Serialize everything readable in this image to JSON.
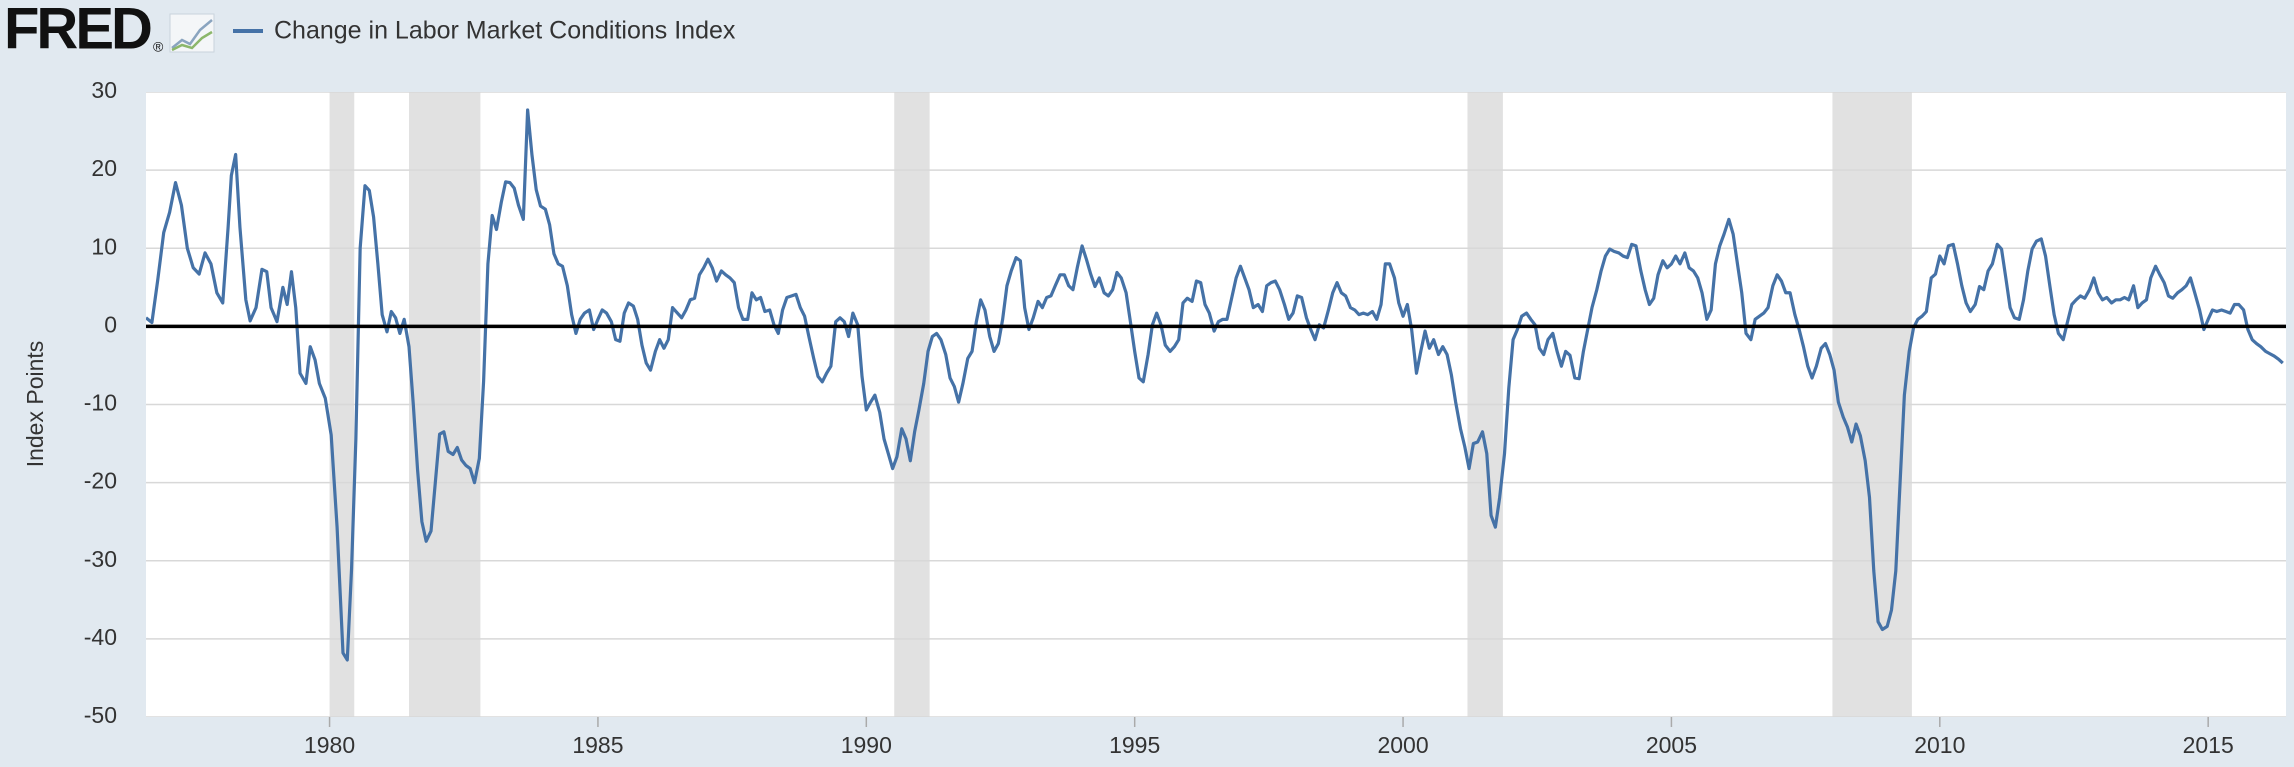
{
  "header": {
    "logo": "FRED",
    "logo_mark": "®"
  },
  "chart_data": {
    "type": "line",
    "y_label": "Index Points",
    "xlim": [
      1976.58,
      2016.45
    ],
    "ylim": [
      -50,
      30
    ],
    "xticks": [
      1980,
      1985,
      1990,
      1995,
      2000,
      2005,
      2010,
      2015
    ],
    "yticks": [
      -50,
      -40,
      -30,
      -20,
      -10,
      0,
      10,
      20,
      30
    ],
    "grid": true,
    "zero_line": true,
    "legend": "top-left",
    "recession_color": "#e1e1e1",
    "recessions": [
      [
        1980,
        1980.46
      ],
      [
        1981.48,
        1982.81
      ],
      [
        1990.52,
        1991.18
      ],
      [
        2001.2,
        2001.86
      ],
      [
        2008,
        2009.48
      ]
    ],
    "x": [
      1976.58,
      1976.69,
      1976.8,
      1976.91,
      1977.02,
      1977.13,
      1977.24,
      1977.35,
      1977.46,
      1977.57,
      1977.68,
      1977.79,
      1977.9,
      1978.01,
      1978.11,
      1978.17,
      1978.25,
      1978.33,
      1978.44,
      1978.52,
      1978.63,
      1978.74,
      1978.83,
      1978.91,
      1979.02,
      1979.13,
      1979.21,
      1979.29,
      1979.37,
      1979.45,
      1979.56,
      1979.64,
      1979.73,
      1979.81,
      1979.92,
      1980.03,
      1980.14,
      1980.25,
      1980.33,
      1980.41,
      1980.49,
      1980.57,
      1980.66,
      1980.74,
      1980.82,
      1980.9,
      1980.98,
      1981.07,
      1981.15,
      1981.23,
      1981.31,
      1981.39,
      1981.48,
      1981.56,
      1981.64,
      1981.72,
      1981.8,
      1981.89,
      1981.97,
      1982.05,
      1982.13,
      1982.21,
      1982.3,
      1982.38,
      1982.46,
      1982.54,
      1982.62,
      1982.7,
      1982.79,
      1982.87,
      1982.95,
      1983.03,
      1983.11,
      1983.2,
      1983.28,
      1983.36,
      1983.44,
      1983.52,
      1983.61,
      1983.69,
      1983.77,
      1983.85,
      1983.93,
      1984.02,
      1984.1,
      1984.18,
      1984.26,
      1984.34,
      1984.43,
      1984.51,
      1984.59,
      1984.67,
      1984.75,
      1984.84,
      1984.92,
      1985,
      1985.08,
      1985.16,
      1985.25,
      1985.33,
      1985.41,
      1985.49,
      1985.57,
      1985.66,
      1985.74,
      1985.82,
      1985.9,
      1985.98,
      1986.07,
      1986.15,
      1986.23,
      1986.31,
      1986.39,
      1986.48,
      1986.56,
      1986.64,
      1986.72,
      1986.8,
      1986.89,
      1986.97,
      1987.05,
      1987.13,
      1987.21,
      1987.3,
      1987.38,
      1987.46,
      1987.54,
      1987.62,
      1987.7,
      1987.79,
      1987.87,
      1987.95,
      1988.03,
      1988.11,
      1988.2,
      1988.28,
      1988.36,
      1988.44,
      1988.52,
      1988.61,
      1988.69,
      1988.77,
      1988.85,
      1988.93,
      1989.02,
      1989.1,
      1989.18,
      1989.26,
      1989.34,
      1989.43,
      1989.51,
      1989.59,
      1989.67,
      1989.75,
      1989.84,
      1989.92,
      1990,
      1990.08,
      1990.16,
      1990.25,
      1990.33,
      1990.41,
      1990.49,
      1990.57,
      1990.66,
      1990.74,
      1990.82,
      1990.9,
      1990.98,
      1991.07,
      1991.15,
      1991.23,
      1991.31,
      1991.39,
      1991.48,
      1991.56,
      1991.64,
      1991.72,
      1991.8,
      1991.89,
      1991.97,
      1992.05,
      1992.13,
      1992.21,
      1992.3,
      1992.38,
      1992.46,
      1992.54,
      1992.62,
      1992.7,
      1992.79,
      1992.87,
      1992.95,
      1993.03,
      1993.11,
      1993.2,
      1993.28,
      1993.36,
      1993.44,
      1993.52,
      1993.61,
      1993.69,
      1993.77,
      1993.85,
      1993.93,
      1994.02,
      1994.1,
      1994.18,
      1994.26,
      1994.34,
      1994.43,
      1994.51,
      1994.59,
      1994.67,
      1994.75,
      1994.84,
      1994.92,
      1995,
      1995.08,
      1995.16,
      1995.25,
      1995.33,
      1995.41,
      1995.49,
      1995.57,
      1995.66,
      1995.74,
      1995.82,
      1995.9,
      1995.98,
      1996.07,
      1996.15,
      1996.23,
      1996.31,
      1996.39,
      1996.48,
      1996.56,
      1996.64,
      1996.72,
      1996.8,
      1996.89,
      1996.97,
      1997.05,
      1997.13,
      1997.21,
      1997.3,
      1997.38,
      1997.46,
      1997.54,
      1997.62,
      1997.7,
      1997.79,
      1997.87,
      1997.95,
      1998.03,
      1998.11,
      1998.2,
      1998.28,
      1998.36,
      1998.44,
      1998.52,
      1998.61,
      1998.69,
      1998.77,
      1998.85,
      1998.93,
      1999.02,
      1999.1,
      1999.18,
      1999.26,
      1999.34,
      1999.43,
      1999.51,
      1999.59,
      1999.67,
      1999.75,
      1999.84,
      1999.92,
      2000,
      2000.08,
      2000.16,
      2000.25,
      2000.33,
      2000.41,
      2000.49,
      2000.57,
      2000.66,
      2000.74,
      2000.82,
      2000.9,
      2000.98,
      2001.07,
      2001.15,
      2001.23,
      2001.31,
      2001.39,
      2001.48,
      2001.56,
      2001.64,
      2001.72,
      2001.8,
      2001.89,
      2001.97,
      2002.05,
      2002.13,
      2002.21,
      2002.3,
      2002.38,
      2002.46,
      2002.54,
      2002.62,
      2002.7,
      2002.79,
      2002.87,
      2002.95,
      2003.03,
      2003.11,
      2003.2,
      2003.28,
      2003.36,
      2003.44,
      2003.52,
      2003.61,
      2003.69,
      2003.77,
      2003.85,
      2003.93,
      2004.02,
      2004.1,
      2004.18,
      2004.26,
      2004.34,
      2004.43,
      2004.51,
      2004.59,
      2004.67,
      2004.75,
      2004.84,
      2004.92,
      2005,
      2005.08,
      2005.16,
      2005.25,
      2005.33,
      2005.41,
      2005.49,
      2005.57,
      2005.66,
      2005.74,
      2005.82,
      2005.9,
      2005.98,
      2006.07,
      2006.15,
      2006.23,
      2006.31,
      2006.39,
      2006.48,
      2006.56,
      2006.64,
      2006.72,
      2006.8,
      2006.89,
      2006.97,
      2007.05,
      2007.13,
      2007.21,
      2007.3,
      2007.38,
      2007.46,
      2007.54,
      2007.62,
      2007.7,
      2007.79,
      2007.87,
      2007.95,
      2008.03,
      2008.11,
      2008.2,
      2008.28,
      2008.36,
      2008.44,
      2008.52,
      2008.61,
      2008.69,
      2008.77,
      2008.85,
      2008.93,
      2009.02,
      2009.1,
      2009.18,
      2009.26,
      2009.34,
      2009.43,
      2009.51,
      2009.59,
      2009.67,
      2009.75,
      2009.84,
      2009.92,
      2010,
      2010.08,
      2010.16,
      2010.25,
      2010.33,
      2010.41,
      2010.49,
      2010.57,
      2010.66,
      2010.74,
      2010.82,
      2010.9,
      2010.98,
      2011.07,
      2011.15,
      2011.23,
      2011.31,
      2011.39,
      2011.48,
      2011.56,
      2011.64,
      2011.72,
      2011.8,
      2011.89,
      2011.97,
      2012.05,
      2012.13,
      2012.21,
      2012.3,
      2012.38,
      2012.46,
      2012.54,
      2012.62,
      2012.7,
      2012.79,
      2012.87,
      2012.95,
      2013.03,
      2013.11,
      2013.2,
      2013.28,
      2013.36,
      2013.44,
      2013.52,
      2013.61,
      2013.69,
      2013.77,
      2013.85,
      2013.93,
      2014.02,
      2014.1,
      2014.18,
      2014.26,
      2014.34,
      2014.43,
      2014.51,
      2014.59,
      2014.67,
      2014.75,
      2014.84,
      2014.92,
      2015,
      2015.08,
      2015.16,
      2015.25,
      2015.33,
      2015.41,
      2015.49,
      2015.57,
      2015.66,
      2015.74,
      2015.82,
      2015.9,
      2015.98,
      2016.07,
      2016.15,
      2016.23,
      2016.31,
      2016.39
    ],
    "series": [
      {
        "name": "Change in Labor Market Conditions Index",
        "color": "#4572a7",
        "values": [
          1.1,
          0.5,
          6,
          12,
          14.6,
          18.4,
          15.5,
          10,
          7.5,
          6.7,
          9.4,
          8,
          4.3,
          3,
          12.7,
          19.3,
          22,
          12.7,
          3.4,
          0.7,
          2.4,
          7.3,
          7,
          2.4,
          0.6,
          5,
          2.8,
          7,
          2.4,
          -6,
          -7.3,
          -2.6,
          -4.3,
          -7.3,
          -9.2,
          -13.9,
          -25.7,
          -41.8,
          -42.7,
          -31,
          -14.4,
          10,
          18,
          17.4,
          14,
          8,
          1.5,
          -0.7,
          1.9,
          1.1,
          -0.9,
          0.9,
          -2.6,
          -10,
          -18.4,
          -25,
          -27.5,
          -26.2,
          -20,
          -13.8,
          -13.5,
          -16,
          -16.4,
          -15.5,
          -17.1,
          -17.8,
          -18.2,
          -20,
          -16.9,
          -7,
          8,
          14.2,
          12.4,
          15.9,
          18.5,
          18.4,
          17.7,
          15.5,
          13.7,
          27.7,
          22,
          17.5,
          15.4,
          15,
          13,
          9.3,
          8,
          7.7,
          5.2,
          1.5,
          -0.9,
          0.9,
          1.7,
          2.1,
          -0.4,
          0.9,
          2.1,
          1.7,
          0.6,
          -1.7,
          -1.9,
          1.7,
          3,
          2.6,
          0.9,
          -2.4,
          -4.7,
          -5.6,
          -3.2,
          -1.7,
          -2.8,
          -1.7,
          2.4,
          1.7,
          1.1,
          2.1,
          3.4,
          3.6,
          6.6,
          7.5,
          8.6,
          7.5,
          5.8,
          7.1,
          6.6,
          6.2,
          5.6,
          2.4,
          0.9,
          0.9,
          4.3,
          3.4,
          3.7,
          1.9,
          2.1,
          0.2,
          -0.9,
          2.1,
          3.7,
          3.9,
          4.1,
          2.4,
          1.3,
          -1.3,
          -4.1,
          -6.4,
          -7.1,
          -6,
          -5.1,
          0.6,
          1.1,
          0.6,
          -1.3,
          1.7,
          0.2,
          -6.4,
          -10.7,
          -9.7,
          -8.8,
          -11,
          -14.4,
          -16.3,
          -18.2,
          -16.7,
          -13.1,
          -14.4,
          -17.2,
          -13.5,
          -10.7,
          -7.3,
          -3.2,
          -1.3,
          -0.9,
          -1.7,
          -3.6,
          -6.6,
          -7.7,
          -9.7,
          -7.3,
          -4.1,
          -3.2,
          0.6,
          3.4,
          2.1,
          -1.3,
          -3.2,
          -2.2,
          0.9,
          5.2,
          7.1,
          8.8,
          8.4,
          2.4,
          -0.4,
          1.1,
          3.2,
          2.4,
          3.7,
          3.9,
          5.2,
          6.6,
          6.6,
          5.2,
          4.7,
          7.5,
          10.3,
          8.6,
          6.7,
          5.1,
          6.2,
          4.3,
          3.9,
          4.7,
          6.9,
          6.2,
          4.3,
          0.6,
          -3.2,
          -6.6,
          -7.1,
          -3.6,
          0.2,
          1.7,
          0.2,
          -2.4,
          -3.2,
          -2.6,
          -1.7,
          3,
          3.6,
          3.2,
          5.8,
          5.6,
          2.8,
          1.7,
          -0.6,
          0.6,
          0.9,
          0.9,
          3.4,
          6.2,
          7.7,
          6.2,
          4.7,
          2.4,
          2.8,
          1.9,
          5.2,
          5.6,
          5.8,
          4.7,
          2.8,
          0.9,
          1.7,
          3.9,
          3.7,
          1.1,
          -0.4,
          -1.7,
          0.2,
          -0.2,
          2.1,
          4.3,
          5.6,
          4.3,
          3.9,
          2.4,
          2.1,
          1.5,
          1.7,
          1.5,
          1.9,
          0.9,
          2.8,
          8,
          8,
          6.2,
          3,
          1.3,
          2.8,
          -0.4,
          -6,
          -3.2,
          -0.6,
          -2.8,
          -1.7,
          -3.6,
          -2.6,
          -3.6,
          -6.2,
          -9.7,
          -13.1,
          -15.4,
          -18.2,
          -15,
          -14.8,
          -13.5,
          -16.3,
          -24.2,
          -25.7,
          -21.9,
          -16.3,
          -7.9,
          -1.7,
          -0.4,
          1.3,
          1.7,
          0.9,
          0.2,
          -2.8,
          -3.6,
          -1.7,
          -0.9,
          -3.2,
          -5.1,
          -3.2,
          -3.7,
          -6.6,
          -6.7,
          -3.2,
          -0.4,
          2.4,
          4.7,
          7.1,
          9,
          9.9,
          9.6,
          9.4,
          9,
          8.8,
          10.5,
          10.3,
          7.1,
          4.7,
          2.8,
          3.6,
          6.6,
          8.4,
          7.5,
          8,
          9,
          8,
          9.4,
          7.5,
          7.1,
          6.2,
          4.3,
          0.9,
          2.1,
          8,
          10.3,
          11.8,
          13.7,
          11.8,
          8,
          4.3,
          -0.9,
          -1.7,
          0.9,
          1.3,
          1.7,
          2.4,
          5.2,
          6.6,
          5.8,
          4.3,
          4.3,
          1.5,
          -0.4,
          -2.6,
          -5.1,
          -6.6,
          -5.1,
          -2.8,
          -2.2,
          -3.6,
          -5.6,
          -9.7,
          -11.6,
          -12.9,
          -14.8,
          -12.5,
          -14,
          -17.2,
          -21.9,
          -31.3,
          -37.8,
          -38.8,
          -38.4,
          -36.3,
          -31.3,
          -20,
          -8.8,
          -3.2,
          -0.2,
          0.9,
          1.3,
          1.9,
          6.2,
          6.7,
          9,
          8,
          10.3,
          10.5,
          8,
          5.2,
          3,
          1.9,
          2.8,
          5.1,
          4.7,
          7.1,
          8,
          10.5,
          9.9,
          6.2,
          2.4,
          1.1,
          0.9,
          3.4,
          7.1,
          9.9,
          10.9,
          11.2,
          9,
          5.2,
          1.5,
          -0.9,
          -1.7,
          0.6,
          2.8,
          3.4,
          3.9,
          3.6,
          4.7,
          6.2,
          4.3,
          3.4,
          3.7,
          3,
          3.4,
          3.4,
          3.7,
          3.4,
          5.2,
          2.4,
          3,
          3.4,
          6.2,
          7.7,
          6.6,
          5.6,
          3.9,
          3.6,
          4.3,
          4.7,
          5.2,
          6.2,
          4.3,
          2.1,
          -0.4,
          0.9,
          2.1,
          1.9,
          2.1,
          1.9,
          1.7,
          2.8,
          2.8,
          2.1,
          -0.4,
          -1.7,
          -2.2,
          -2.6,
          -3.2,
          -3.5,
          -3.8,
          -4.2,
          -4.7
        ]
      }
    ]
  }
}
